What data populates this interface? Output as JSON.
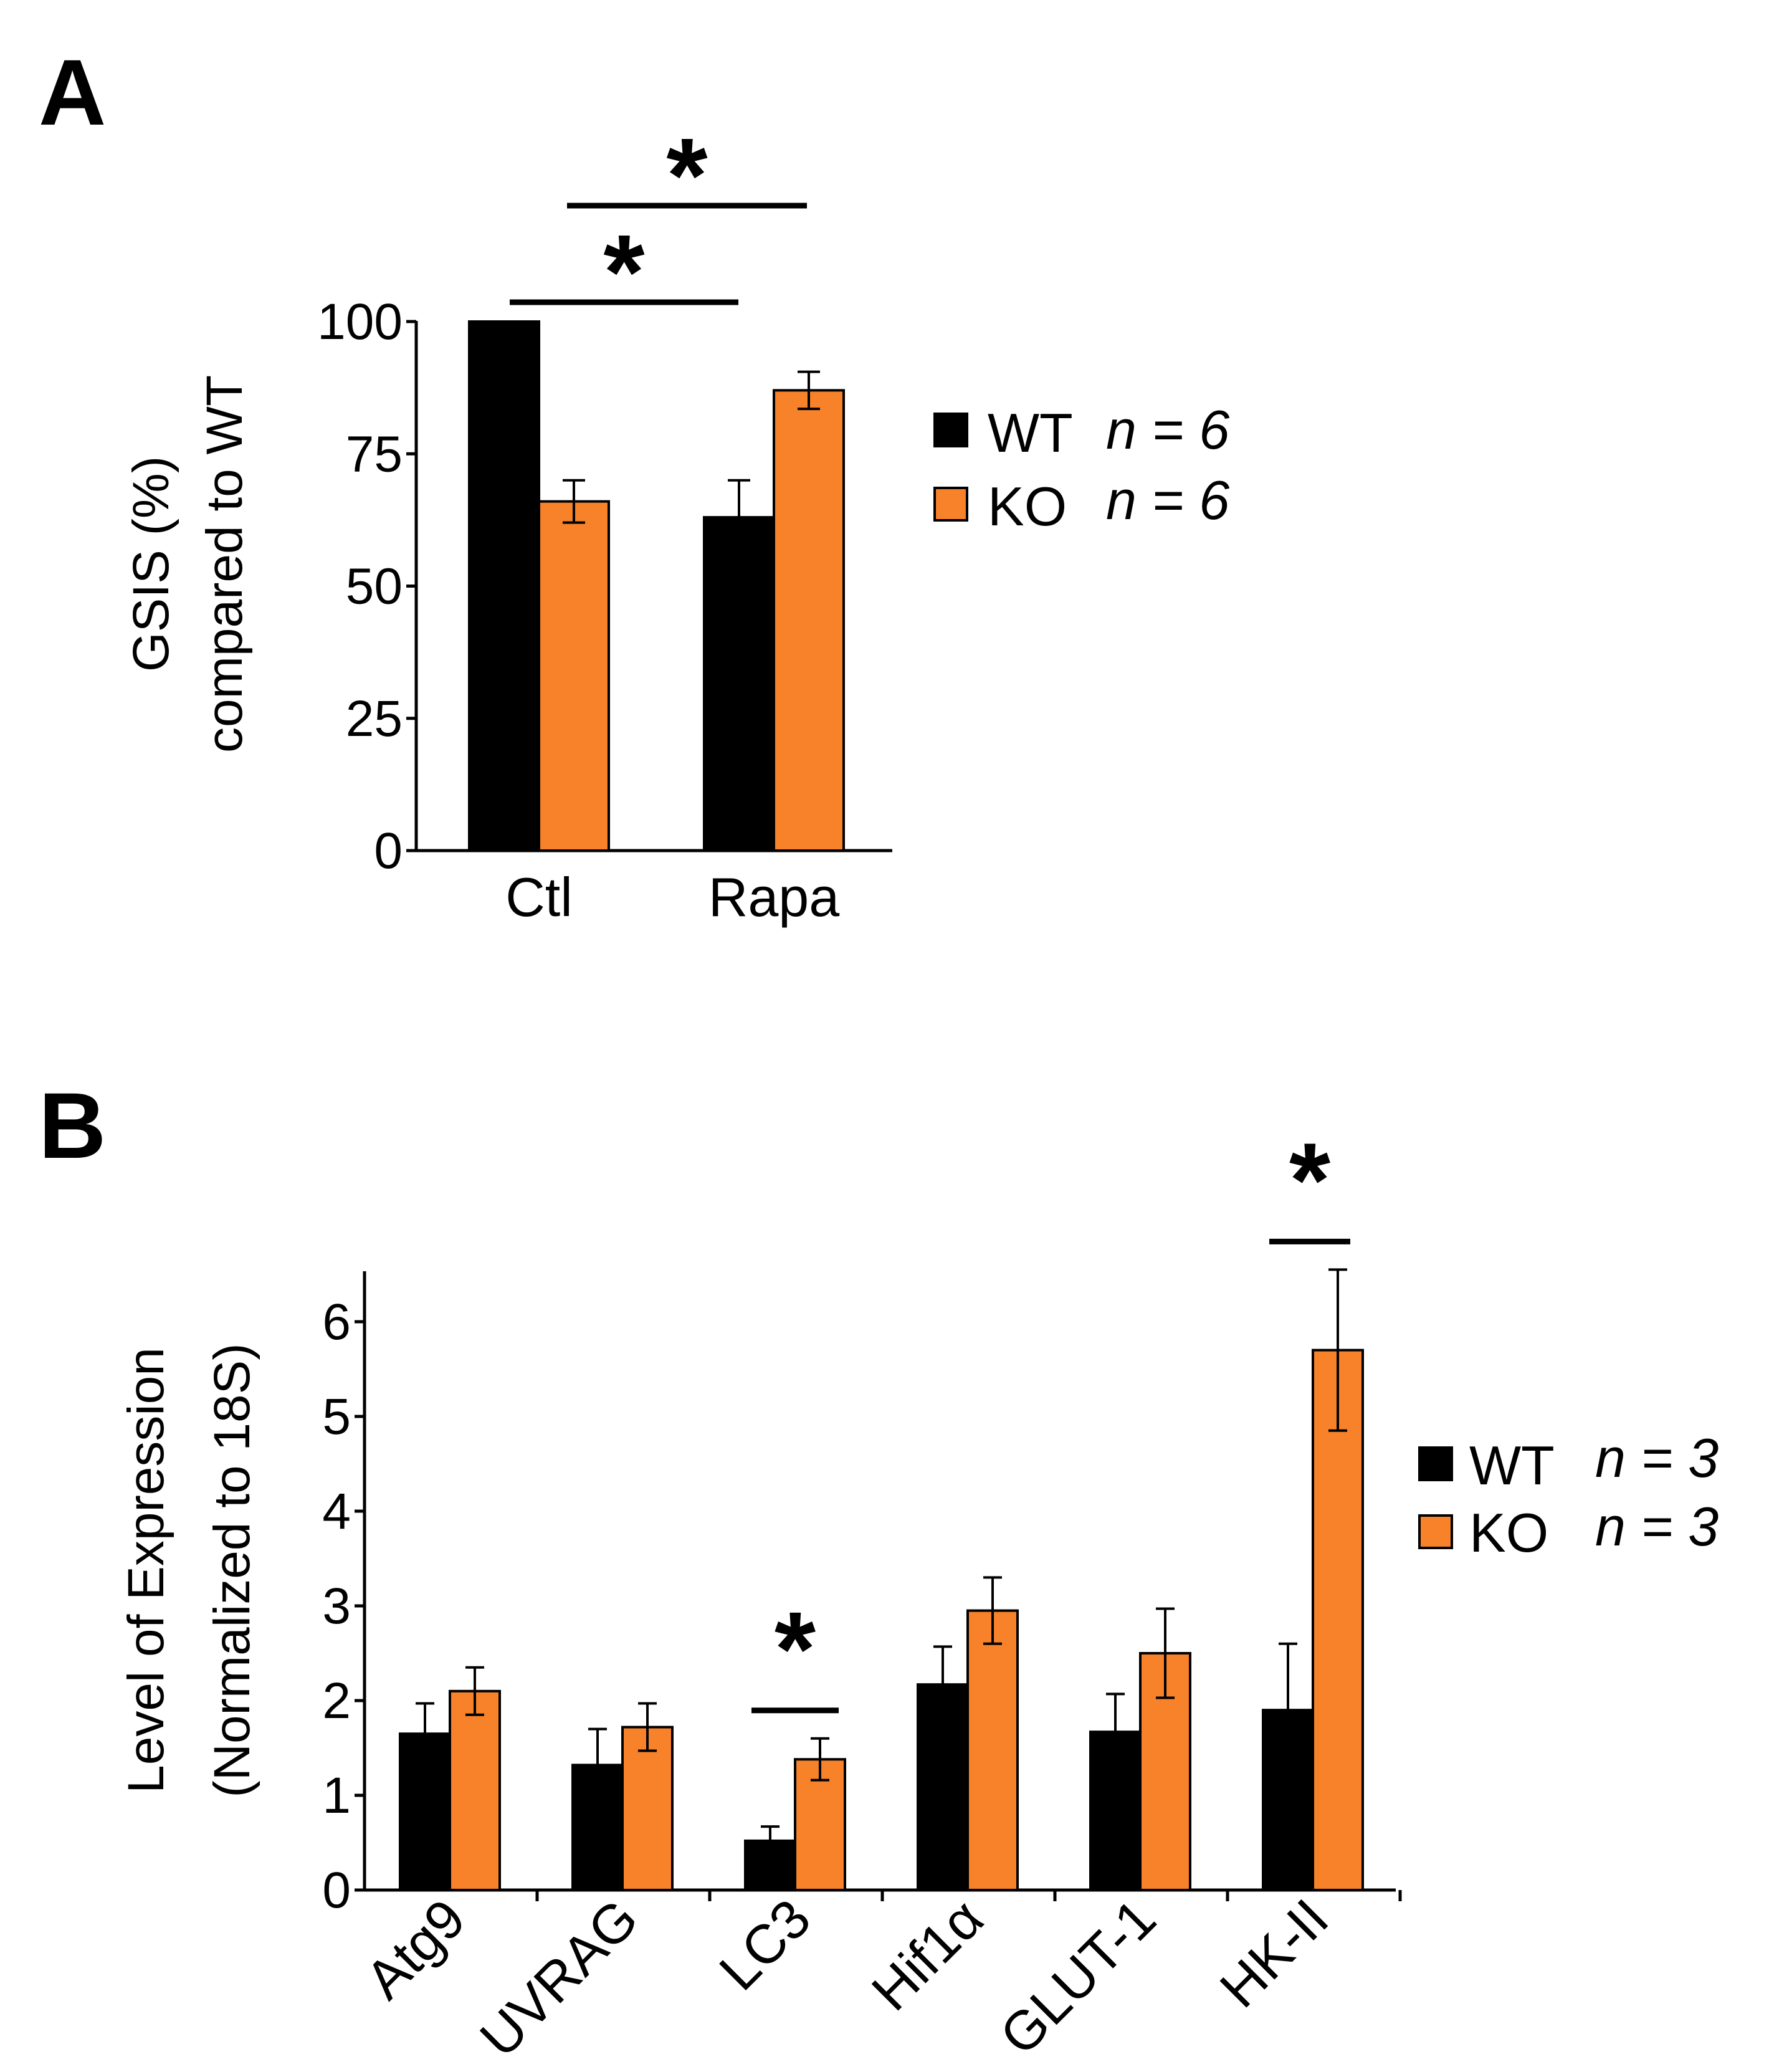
{
  "chart_data": [
    {
      "panel": "A",
      "type": "bar",
      "categories": [
        "Ctl",
        "Rapa"
      ],
      "series": [
        {
          "name": "WT",
          "n_label": "n = 6",
          "values": [
            100,
            63
          ],
          "errors": [
            0,
            7
          ],
          "color": "#000000"
        },
        {
          "name": "KO",
          "n_label": "n = 6",
          "values": [
            66,
            87
          ],
          "errors": [
            4,
            3.5
          ],
          "color": "#f7822a"
        }
      ],
      "ylabel_line1": "GSIS (%)",
      "ylabel_line2": "compared to WT",
      "xlabel": "",
      "ylim": [
        0,
        100
      ],
      "yticks": [
        0,
        25,
        50,
        75,
        100
      ],
      "ytick_labels": [
        "0",
        "25",
        "50",
        "75",
        "100"
      ],
      "significance": [
        {
          "from": [
            "Ctl",
            "WT"
          ],
          "to": [
            "Rapa",
            "WT"
          ],
          "label": "*"
        },
        {
          "from": [
            "Ctl",
            "KO"
          ],
          "to": [
            "Rapa",
            "KO"
          ],
          "label": "*"
        }
      ]
    },
    {
      "panel": "B",
      "type": "bar",
      "categories": [
        "Atg9",
        "UVRAG",
        "LC3",
        "Hif1α",
        "GLUT-1",
        "HK-II"
      ],
      "series": [
        {
          "name": "WT",
          "n_label": "n = 3",
          "values": [
            1.65,
            1.32,
            0.52,
            2.17,
            1.67,
            1.9
          ],
          "errors": [
            0.32,
            0.38,
            0.15,
            0.4,
            0.4,
            0.7
          ],
          "color": "#000000"
        },
        {
          "name": "KO",
          "n_label": "n = 3",
          "values": [
            2.1,
            1.72,
            1.38,
            2.95,
            2.5,
            5.7
          ],
          "errors": [
            0.25,
            0.25,
            0.22,
            0.35,
            0.47,
            0.85
          ],
          "color": "#f7822a"
        }
      ],
      "ylabel_line1": "Level of Expression",
      "ylabel_line2": "(Normalized to 18S)",
      "xlabel": "",
      "ylim": [
        0,
        6.5
      ],
      "yticks": [
        0,
        1,
        2,
        3,
        4,
        5,
        6
      ],
      "ytick_labels": [
        "0",
        "1",
        "2",
        "3",
        "4",
        "5",
        "6"
      ],
      "significance": [
        {
          "category": "LC3",
          "label": "*"
        },
        {
          "category": "HK-II",
          "label": "*"
        }
      ]
    }
  ]
}
